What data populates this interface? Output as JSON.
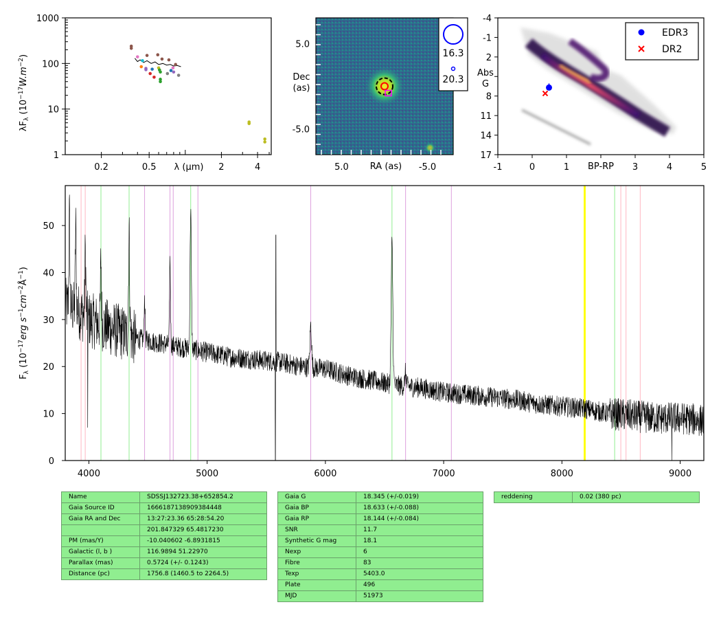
{
  "colors": {
    "background": "#ffffff",
    "table_bg": "#90ee90",
    "edr3": "#0000ff",
    "dr2": "#ff0000",
    "spectrum": "#000000"
  },
  "chart_data": [
    {
      "type": "scatter",
      "name": "sed",
      "xscale": "log",
      "yscale": "log",
      "xlabel": "λ (μm)",
      "ylabel": "λF_λ (10^-17 W.m^-2)",
      "xlim": [
        0.1,
        5.2
      ],
      "ylim": [
        1,
        1000
      ],
      "xticks": [
        {
          "v": 0.2,
          "label": "0.2"
        },
        {
          "v": 0.5,
          "label": "0.5"
        },
        {
          "v": 2,
          "label": "2"
        },
        {
          "v": 4,
          "label": "4"
        }
      ],
      "yticks": [
        {
          "v": 1,
          "label": "1"
        },
        {
          "v": 10,
          "label": "10"
        },
        {
          "v": 100,
          "label": "100"
        },
        {
          "v": 1000,
          "label": "1000"
        }
      ],
      "points": [
        {
          "x": 0.355,
          "y": 240,
          "c": "#8c564b"
        },
        {
          "x": 0.355,
          "y": 215,
          "c": "#8c564b"
        },
        {
          "x": 0.4,
          "y": 140,
          "c": "#e377c2"
        },
        {
          "x": 0.44,
          "y": 115,
          "c": "#17becf"
        },
        {
          "x": 0.43,
          "y": 85,
          "c": "#ff7f0e"
        },
        {
          "x": 0.47,
          "y": 78,
          "c": "#9467bd"
        },
        {
          "x": 0.47,
          "y": 73,
          "c": "#9467bd"
        },
        {
          "x": 0.48,
          "y": 150,
          "c": "#8c564b"
        },
        {
          "x": 0.51,
          "y": 60,
          "c": "#d62728"
        },
        {
          "x": 0.53,
          "y": 75,
          "c": "#1f77b4"
        },
        {
          "x": 0.55,
          "y": 50,
          "c": "#d62728"
        },
        {
          "x": 0.59,
          "y": 155,
          "c": "#8c564b"
        },
        {
          "x": 0.6,
          "y": 80,
          "c": "#bcbd22"
        },
        {
          "x": 0.61,
          "y": 72,
          "c": "#2ca02c"
        },
        {
          "x": 0.62,
          "y": 65,
          "c": "#2ca02c"
        },
        {
          "x": 0.62,
          "y": 45,
          "c": "#2ca02c"
        },
        {
          "x": 0.62,
          "y": 40,
          "c": "#2ca02c"
        },
        {
          "x": 0.64,
          "y": 125,
          "c": "#8c564b"
        },
        {
          "x": 0.71,
          "y": 60,
          "c": "#7f7f7f"
        },
        {
          "x": 0.73,
          "y": 120,
          "c": "#8c564b"
        },
        {
          "x": 0.76,
          "y": 70,
          "c": "#1f77b4"
        },
        {
          "x": 0.79,
          "y": 80,
          "c": "#e377c2"
        },
        {
          "x": 0.8,
          "y": 65,
          "c": "#9467bd"
        },
        {
          "x": 0.83,
          "y": 95,
          "c": "#8c564b"
        },
        {
          "x": 0.88,
          "y": 55,
          "c": "#7f7f7f"
        },
        {
          "x": 3.4,
          "y": 5.2,
          "c": "#bcbd22"
        },
        {
          "x": 3.4,
          "y": 4.8,
          "c": "#bcbd22"
        },
        {
          "x": 4.6,
          "y": 2.2,
          "c": "#bcbd22"
        },
        {
          "x": 4.6,
          "y": 1.9,
          "c": "#bcbd22"
        }
      ],
      "spectrum_band": [
        [
          0.38,
          130
        ],
        [
          0.4,
          110
        ],
        [
          0.42,
          120
        ],
        [
          0.45,
          105
        ],
        [
          0.48,
          115
        ],
        [
          0.52,
          100
        ],
        [
          0.56,
          108
        ],
        [
          0.6,
          95
        ],
        [
          0.65,
          100
        ],
        [
          0.7,
          92
        ],
        [
          0.75,
          95
        ],
        [
          0.8,
          88
        ],
        [
          0.86,
          90
        ],
        [
          0.92,
          85
        ]
      ]
    },
    {
      "type": "heatmap",
      "name": "image",
      "xlabel": "RA (as)",
      "ylabel": "Dec (as)",
      "xlim": [
        8.0,
        -8.0
      ],
      "ylim": [
        -8.0,
        8.0
      ],
      "xticks": [
        {
          "v": 5,
          "label": "5.0"
        },
        {
          "v": -5,
          "label": "-5.0"
        }
      ],
      "yticks": [
        {
          "v": 5,
          "label": "5.0"
        },
        {
          "v": -5,
          "label": "-5.0"
        }
      ],
      "source": {
        "ra": 0.0,
        "dec": 0.0
      },
      "legend": [
        {
          "label": "16.3"
        },
        {
          "label": "20.3"
        }
      ]
    },
    {
      "type": "scatter",
      "name": "hr",
      "xlabel": "BP-RP",
      "ylabel": "Abs G",
      "xlim": [
        -1,
        5
      ],
      "ylim": [
        17,
        -4
      ],
      "xticks": [
        {
          "v": -1,
          "label": "-1"
        },
        {
          "v": 0,
          "label": "0"
        },
        {
          "v": 1,
          "label": "1"
        },
        {
          "v": 3,
          "label": "3"
        },
        {
          "v": 4,
          "label": "4"
        },
        {
          "v": 5,
          "label": "5"
        }
      ],
      "yticks": [
        {
          "v": -4,
          "label": "-4"
        },
        {
          "v": -1,
          "label": "-1"
        },
        {
          "v": 2,
          "label": "2"
        },
        {
          "v": 8,
          "label": "8"
        },
        {
          "v": 11,
          "label": "11"
        },
        {
          "v": 14,
          "label": "14"
        },
        {
          "v": 17,
          "label": "17"
        }
      ],
      "series": [
        {
          "name": "EDR3",
          "marker": "circle",
          "color": "#0000ff",
          "x": 0.49,
          "y": 6.7
        },
        {
          "name": "DR2",
          "marker": "x",
          "color": "#ff0000",
          "x": 0.38,
          "y": 7.6
        }
      ]
    },
    {
      "type": "line",
      "name": "spectrum",
      "xlabel": "",
      "ylabel": "F_λ (10^-17 erg s^-1 cm^-2 Å^-1)",
      "xlim": [
        3800,
        9200
      ],
      "ylim": [
        0,
        58.5
      ],
      "xticks": [
        {
          "v": 4000,
          "label": "4000"
        },
        {
          "v": 5000,
          "label": "5000"
        },
        {
          "v": 6000,
          "label": "6000"
        },
        {
          "v": 7000,
          "label": "7000"
        },
        {
          "v": 8000,
          "label": "8000"
        },
        {
          "v": 9000,
          "label": "9000"
        }
      ],
      "yticks": [
        {
          "v": 0,
          "label": "0"
        },
        {
          "v": 10,
          "label": "10"
        },
        {
          "v": 20,
          "label": "20"
        },
        {
          "v": 30,
          "label": "30"
        },
        {
          "v": 40,
          "label": "40"
        },
        {
          "v": 50,
          "label": "50"
        }
      ],
      "lines_pink": [
        3934,
        3969,
        8498,
        8542,
        8662
      ],
      "lines_green": [
        4102,
        4340,
        4861,
        6563,
        8446
      ],
      "lines_violet": [
        4471,
        4686,
        4713,
        4922,
        5876,
        6678,
        7065
      ],
      "lines_yellow": [
        8190,
        8195
      ],
      "continuum": [
        [
          3800,
          33
        ],
        [
          3900,
          32
        ],
        [
          4000,
          30
        ],
        [
          4200,
          28
        ],
        [
          4400,
          26
        ],
        [
          4600,
          25
        ],
        [
          4800,
          24
        ],
        [
          5000,
          23
        ],
        [
          5200,
          22
        ],
        [
          5400,
          21.5
        ],
        [
          5600,
          21
        ],
        [
          5800,
          20
        ],
        [
          6000,
          19.5
        ],
        [
          6200,
          18
        ],
        [
          6400,
          17
        ],
        [
          6600,
          16
        ],
        [
          6800,
          15.5
        ],
        [
          7000,
          14.5
        ],
        [
          7200,
          14
        ],
        [
          7400,
          13.5
        ],
        [
          7600,
          13
        ],
        [
          7800,
          12
        ],
        [
          8000,
          11.5
        ],
        [
          8200,
          11
        ],
        [
          8400,
          10
        ],
        [
          8600,
          9.5
        ],
        [
          8800,
          9
        ],
        [
          9000,
          9
        ],
        [
          9200,
          8.5
        ]
      ],
      "emission": [
        {
          "x": 3835,
          "h": 20,
          "w": 6
        },
        {
          "x": 3889,
          "h": 18,
          "w": 6
        },
        {
          "x": 3970,
          "h": 14,
          "w": 6
        },
        {
          "x": 4102,
          "h": 14,
          "w": 6
        },
        {
          "x": 4340,
          "h": 22,
          "w": 7
        },
        {
          "x": 4471,
          "h": 9,
          "w": 6
        },
        {
          "x": 4686,
          "h": 18,
          "w": 6
        },
        {
          "x": 4861,
          "h": 30,
          "w": 8
        },
        {
          "x": 5876,
          "h": 9,
          "w": 10
        },
        {
          "x": 6563,
          "h": 30,
          "w": 10
        },
        {
          "x": 6678,
          "h": 3,
          "w": 8
        }
      ],
      "dips": [
        {
          "x": 5577,
          "v": 0
        },
        {
          "x": 3990,
          "v": 7
        },
        {
          "x": 8930,
          "v": 0
        }
      ],
      "spikes": [
        {
          "x": 5577,
          "v": 48
        }
      ]
    }
  ],
  "table1": [
    [
      "Name",
      "SDSSJ132723.38+652854.2"
    ],
    [
      "Gaia Source ID",
      "1666187138909384448"
    ],
    [
      "Gaia RA and Dec",
      "13:27:23.36    65:28:54.20"
    ],
    [
      "",
      "201.847329    65.4817230"
    ],
    [
      "PM (mas/Y)",
      "-10.040602    -6.8931815"
    ],
    [
      "Galactic (l, b )",
      "116.9894    51.22970"
    ],
    [
      "Parallax (mas)",
      "0.5724 (+/- 0.1243)"
    ],
    [
      "Distance (pc)",
      "1756.8 (1460.5 to 2264.5)"
    ]
  ],
  "table2": [
    [
      "Gaia G",
      "18.345 (+/-0.019)"
    ],
    [
      "Gaia BP",
      "18.633 (+/-0.088)"
    ],
    [
      "Gaia RP",
      "18.144 (+/-0.084)"
    ],
    [
      "SNR",
      "11.7"
    ],
    [
      "Synthetic G mag",
      "18.1"
    ],
    [
      "Nexp",
      "6"
    ],
    [
      "Fibre",
      "83"
    ],
    [
      "Texp",
      "5403.0"
    ],
    [
      "Plate",
      "496"
    ],
    [
      "MJD",
      "51973"
    ]
  ],
  "table3": [
    [
      "reddening",
      "0.02 (380 pc)"
    ]
  ]
}
